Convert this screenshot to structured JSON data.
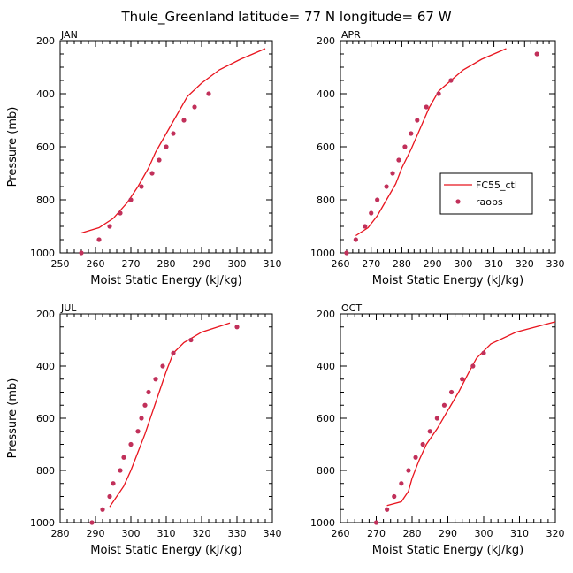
{
  "figure": {
    "title": "Thule_Greenland  latitude= 77 N longitude= 67 W"
  },
  "colors": {
    "model_line": "#e8141e",
    "raobs_points": "#c1305a"
  },
  "legend": {
    "model_label": "FC55_ctl",
    "obs_label": "raobs",
    "placement": "inside APR panel, right"
  },
  "chart_data": [
    {
      "type": "line",
      "panel": "JAN",
      "xlabel": "Moist Static Energy (kJ/kg)",
      "ylabel": "Pressure (mb)",
      "xlim": [
        250,
        310
      ],
      "xticks": [
        250,
        260,
        270,
        280,
        290,
        300,
        310
      ],
      "ylim": [
        1000,
        200
      ],
      "yticks": [
        200,
        400,
        600,
        800,
        1000
      ],
      "series": [
        {
          "name": "FC55_ctl",
          "points": [
            [
              256,
              925
            ],
            [
              261,
              905
            ],
            [
              265,
              870
            ],
            [
              269,
              810
            ],
            [
              272,
              750
            ],
            [
              275,
              680
            ],
            [
              277,
              620
            ],
            [
              280,
              550
            ],
            [
              283,
              480
            ],
            [
              286,
              410
            ],
            [
              290,
              360
            ],
            [
              295,
              310
            ],
            [
              301,
              270
            ],
            [
              308,
              230
            ]
          ]
        },
        {
          "name": "raobs",
          "points": [
            [
              256,
              1000
            ],
            [
              261,
              950
            ],
            [
              264,
              900
            ],
            [
              267,
              850
            ],
            [
              270,
              800
            ],
            [
              273,
              750
            ],
            [
              276,
              700
            ],
            [
              278,
              650
            ],
            [
              280,
              600
            ],
            [
              282,
              550
            ],
            [
              285,
              500
            ],
            [
              288,
              450
            ],
            [
              292,
              400
            ]
          ]
        }
      ]
    },
    {
      "type": "line",
      "panel": "APR",
      "xlabel": "Moist Static Energy (kJ/kg)",
      "ylabel": "",
      "xlim": [
        260,
        330
      ],
      "xticks": [
        260,
        270,
        280,
        290,
        300,
        310,
        320,
        330
      ],
      "ylim": [
        1000,
        200
      ],
      "yticks": [
        200,
        400,
        600,
        800,
        1000
      ],
      "series": [
        {
          "name": "FC55_ctl",
          "points": [
            [
              265,
              935
            ],
            [
              269,
              905
            ],
            [
              272,
              860
            ],
            [
              275,
              800
            ],
            [
              278,
              740
            ],
            [
              280,
              680
            ],
            [
              283,
              610
            ],
            [
              286,
              530
            ],
            [
              289,
              450
            ],
            [
              292,
              390
            ],
            [
              296,
              350
            ],
            [
              300,
              310
            ],
            [
              306,
              270
            ],
            [
              314,
              230
            ]
          ]
        },
        {
          "name": "raobs",
          "points": [
            [
              262,
              1000
            ],
            [
              265,
              950
            ],
            [
              268,
              900
            ],
            [
              270,
              850
            ],
            [
              272,
              800
            ],
            [
              275,
              750
            ],
            [
              277,
              700
            ],
            [
              279,
              650
            ],
            [
              281,
              600
            ],
            [
              283,
              550
            ],
            [
              285,
              500
            ],
            [
              288,
              450
            ],
            [
              292,
              400
            ],
            [
              296,
              350
            ],
            [
              324,
              250
            ]
          ]
        }
      ]
    },
    {
      "type": "line",
      "panel": "JUL",
      "xlabel": "Moist Static Energy (kJ/kg)",
      "ylabel": "Pressure (mb)",
      "xlim": [
        280,
        340
      ],
      "xticks": [
        280,
        290,
        300,
        310,
        320,
        330,
        340
      ],
      "ylim": [
        1000,
        200
      ],
      "yticks": [
        200,
        400,
        600,
        800,
        1000
      ],
      "series": [
        {
          "name": "FC55_ctl",
          "points": [
            [
              294,
              940
            ],
            [
              296,
              900
            ],
            [
              298,
              860
            ],
            [
              300,
              800
            ],
            [
              302,
              730
            ],
            [
              304,
              660
            ],
            [
              306,
              580
            ],
            [
              308,
              500
            ],
            [
              310,
              420
            ],
            [
              312,
              350
            ],
            [
              315,
              310
            ],
            [
              320,
              270
            ],
            [
              328,
              235
            ]
          ]
        },
        {
          "name": "raobs",
          "points": [
            [
              289,
              1000
            ],
            [
              292,
              950
            ],
            [
              294,
              900
            ],
            [
              295,
              850
            ],
            [
              297,
              800
            ],
            [
              298,
              750
            ],
            [
              300,
              700
            ],
            [
              302,
              650
            ],
            [
              303,
              600
            ],
            [
              304,
              550
            ],
            [
              305,
              500
            ],
            [
              307,
              450
            ],
            [
              309,
              400
            ],
            [
              312,
              350
            ],
            [
              317,
              300
            ],
            [
              330,
              250
            ]
          ]
        }
      ]
    },
    {
      "type": "line",
      "panel": "OCT",
      "xlabel": "Moist Static Energy (kJ/kg)",
      "ylabel": "",
      "xlim": [
        260,
        320
      ],
      "xticks": [
        260,
        270,
        280,
        290,
        300,
        310,
        320
      ],
      "ylim": [
        1000,
        200
      ],
      "yticks": [
        200,
        400,
        600,
        800,
        1000
      ],
      "series": [
        {
          "name": "FC55_ctl",
          "points": [
            [
              273,
              935
            ],
            [
              277,
              920
            ],
            [
              279,
              880
            ],
            [
              280,
              830
            ],
            [
              282,
              760
            ],
            [
              284,
              700
            ],
            [
              287,
              640
            ],
            [
              290,
              570
            ],
            [
              293,
              500
            ],
            [
              296,
              420
            ],
            [
              298,
              370
            ],
            [
              302,
              315
            ],
            [
              309,
              270
            ],
            [
              320,
              230
            ]
          ]
        },
        {
          "name": "raobs",
          "points": [
            [
              270,
              1000
            ],
            [
              273,
              950
            ],
            [
              275,
              900
            ],
            [
              277,
              850
            ],
            [
              279,
              800
            ],
            [
              281,
              750
            ],
            [
              283,
              700
            ],
            [
              285,
              650
            ],
            [
              287,
              600
            ],
            [
              289,
              550
            ],
            [
              291,
              500
            ],
            [
              294,
              450
            ],
            [
              297,
              400
            ],
            [
              300,
              350
            ]
          ]
        }
      ]
    }
  ]
}
